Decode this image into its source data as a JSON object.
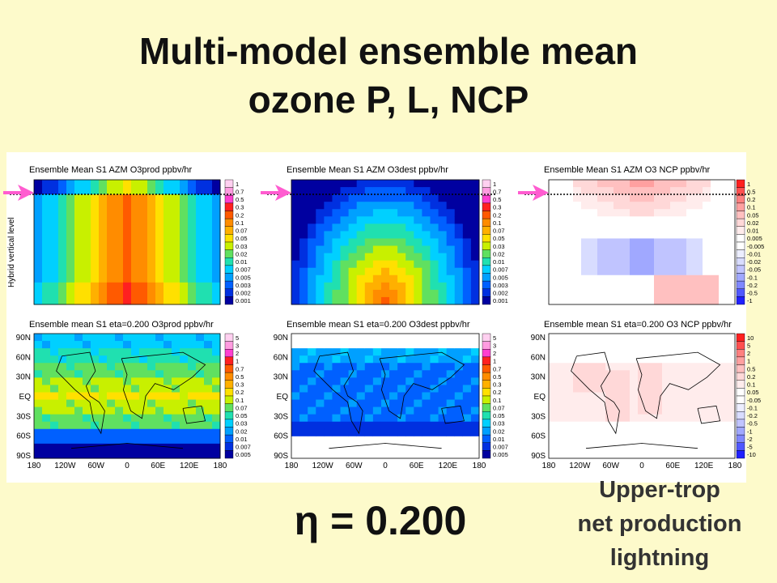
{
  "title_lines": [
    "Multi-model ensemble mean",
    "ozone P, L, NCP"
  ],
  "y_axis_label": "Hybrid vertical level",
  "map_axes": {
    "lat_labels": [
      "90N",
      "60N",
      "30N",
      "EQ",
      "30S",
      "60S",
      "90S"
    ],
    "lon_labels": [
      "180",
      "120W",
      "60W",
      "0",
      "60E",
      "120E",
      "180"
    ]
  },
  "panels": [
    {
      "title": "Ensemble Mean S1 AZM O3prod ppbv/hr",
      "colorbar_labels": [
        "1",
        "0.7",
        "0.5",
        "0.3",
        "0.2",
        "0.1",
        "0.07",
        "0.05",
        "0.03",
        "0.02",
        "0.01",
        "0.007",
        "0.005",
        "0.003",
        "0.002",
        "0.001"
      ]
    },
    {
      "title": "Ensemble Mean S1 AZM O3dest ppbv/hr",
      "colorbar_labels": [
        "1",
        "0.7",
        "0.5",
        "0.3",
        "0.2",
        "0.1",
        "0.07",
        "0.05",
        "0.03",
        "0.02",
        "0.01",
        "0.007",
        "0.005",
        "0.003",
        "0.002",
        "0.001"
      ]
    },
    {
      "title": "Ensemble Mean S1 AZM O3 NCP ppbv/hr",
      "colorbar_labels": [
        "1",
        "0.5",
        "0.2",
        "0.1",
        "0.05",
        "0.02",
        "0.01",
        "0.005",
        "-0.005",
        "-0.01",
        "-0.02",
        "-0.05",
        "-0.1",
        "-0.2",
        "-0.5",
        "-1"
      ]
    },
    {
      "title": "Ensemble mean S1 eta=0.200 O3prod ppbv/hr",
      "colorbar_labels": [
        "5",
        "3",
        "2",
        "1",
        "0.7",
        "0.5",
        "0.3",
        "0.2",
        "0.1",
        "0.07",
        "0.05",
        "0.03",
        "0.02",
        "0.01",
        "0.007",
        "0.005"
      ]
    },
    {
      "title": "Ensemble mean S1 eta=0.200 O3dest ppbv/hr",
      "colorbar_labels": [
        "5",
        "3",
        "2",
        "1",
        "0.7",
        "0.5",
        "0.3",
        "0.2",
        "0.1",
        "0.07",
        "0.05",
        "0.03",
        "0.02",
        "0.01",
        "0.007",
        "0.005"
      ]
    },
    {
      "title": "Ensemble mean S1 eta=0.200 O3 NCP ppbv/hr",
      "colorbar_labels": [
        "10",
        "5",
        "2",
        "1",
        "0.5",
        "0.2",
        "0.1",
        "0.05",
        "-0.05",
        "-0.1",
        "-0.2",
        "-0.5",
        "-1",
        "-2",
        "-5",
        "-10"
      ]
    }
  ],
  "eta_label": "η = 0.200",
  "note_lines": [
    "Upper-trop",
    "net production",
    "lightning"
  ]
}
